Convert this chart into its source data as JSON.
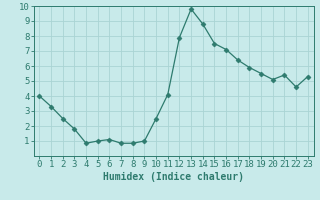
{
  "x": [
    0,
    1,
    2,
    3,
    4,
    5,
    6,
    7,
    8,
    9,
    10,
    11,
    12,
    13,
    14,
    15,
    16,
    17,
    18,
    19,
    20,
    21,
    22,
    23
  ],
  "y": [
    4.0,
    3.3,
    2.5,
    1.8,
    0.85,
    1.0,
    1.1,
    0.85,
    0.85,
    1.0,
    2.5,
    4.1,
    7.9,
    9.8,
    8.8,
    7.5,
    7.1,
    6.4,
    5.9,
    5.5,
    5.1,
    5.4,
    4.6,
    5.3
  ],
  "line_color": "#2e7b6e",
  "marker": "D",
  "marker_size": 2.5,
  "bg_color": "#c8eaea",
  "grid_color": "#aad4d4",
  "xlabel": "Humidex (Indice chaleur)",
  "xlim": [
    -0.5,
    23.5
  ],
  "ylim": [
    0,
    10
  ],
  "xticks": [
    0,
    1,
    2,
    3,
    4,
    5,
    6,
    7,
    8,
    9,
    10,
    11,
    12,
    13,
    14,
    15,
    16,
    17,
    18,
    19,
    20,
    21,
    22,
    23
  ],
  "yticks": [
    1,
    2,
    3,
    4,
    5,
    6,
    7,
    8,
    9,
    10
  ],
  "xlabel_fontsize": 7,
  "tick_fontsize": 6.5
}
